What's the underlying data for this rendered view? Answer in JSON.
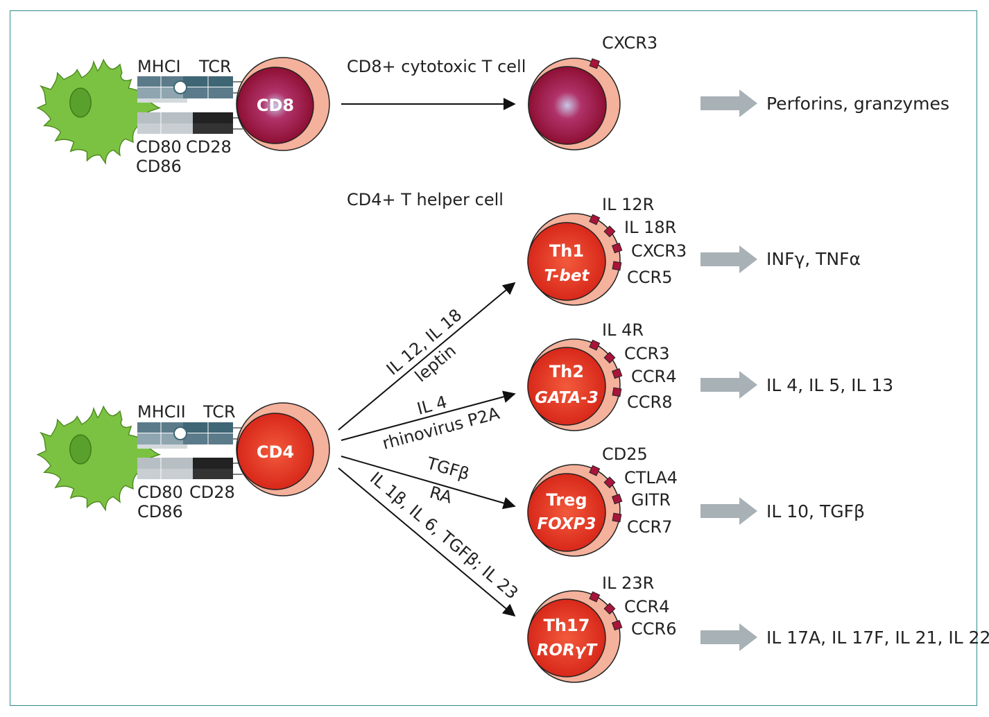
{
  "colors": {
    "apc": "#7cc242",
    "cd8_core": "#9b1236",
    "effector_core": "#e0301e",
    "cell_halo": "#f4b19b",
    "receptor": "#a8143a",
    "mhc": "#5b7b8a",
    "costim_light": "#b7bfc4",
    "costim_dark": "#222222",
    "arrow_grey": "#a8b1b5",
    "border": "#2e8b8b"
  },
  "top": {
    "apc_labels": {
      "mhc": "MHCI",
      "tcr": "TCR",
      "cd80": "CD80",
      "cd86": "CD86",
      "cd28": "CD28"
    },
    "cell_label": "CD8",
    "arrow_label": "CD8+ cytotoxic T cell",
    "effector": {
      "receptors": [
        "CXCR3"
      ],
      "output": "Perforins, granzymes"
    }
  },
  "bottom": {
    "section_label": "CD4+ T helper cell",
    "apc_labels": {
      "mhc": "MHCII",
      "tcr": "TCR",
      "cd80": "CD80",
      "cd86": "CD86",
      "cd28": "CD28"
    },
    "cell_label": "CD4",
    "paths": [
      {
        "label_line1": "IL 12, IL 18",
        "label_line2": "leptin"
      },
      {
        "label_line1": "IL 4",
        "label_line2": "rhinovirus P2A"
      },
      {
        "label_line1": "TGFβ",
        "label_line2": "RA"
      },
      {
        "label_line1": "IL 1β, IL 6, TGFβ; IL 23",
        "label_line2": ""
      }
    ],
    "subsets": [
      {
        "name": "Th1",
        "tf": "T-bet",
        "receptors": [
          "IL 12R",
          "IL 18R",
          "CXCR3",
          "CCR5"
        ],
        "output": "INFγ, TNFα"
      },
      {
        "name": "Th2",
        "tf": "GATA-3",
        "receptors": [
          "IL 4R",
          "CCR3",
          "CCR4",
          "CCR8"
        ],
        "output": "IL 4, IL 5, IL 13"
      },
      {
        "name": "Treg",
        "tf": "FOXP3",
        "receptors": [
          "CD25",
          "CTLA4",
          "GITR",
          "CCR7"
        ],
        "output": "IL 10, TGFβ"
      },
      {
        "name": "Th17",
        "tf": "RORγT",
        "receptors": [
          "IL 23R",
          "CCR4",
          "CCR6"
        ],
        "output": "IL 17A, IL 17F, IL 21, IL 22"
      }
    ]
  }
}
